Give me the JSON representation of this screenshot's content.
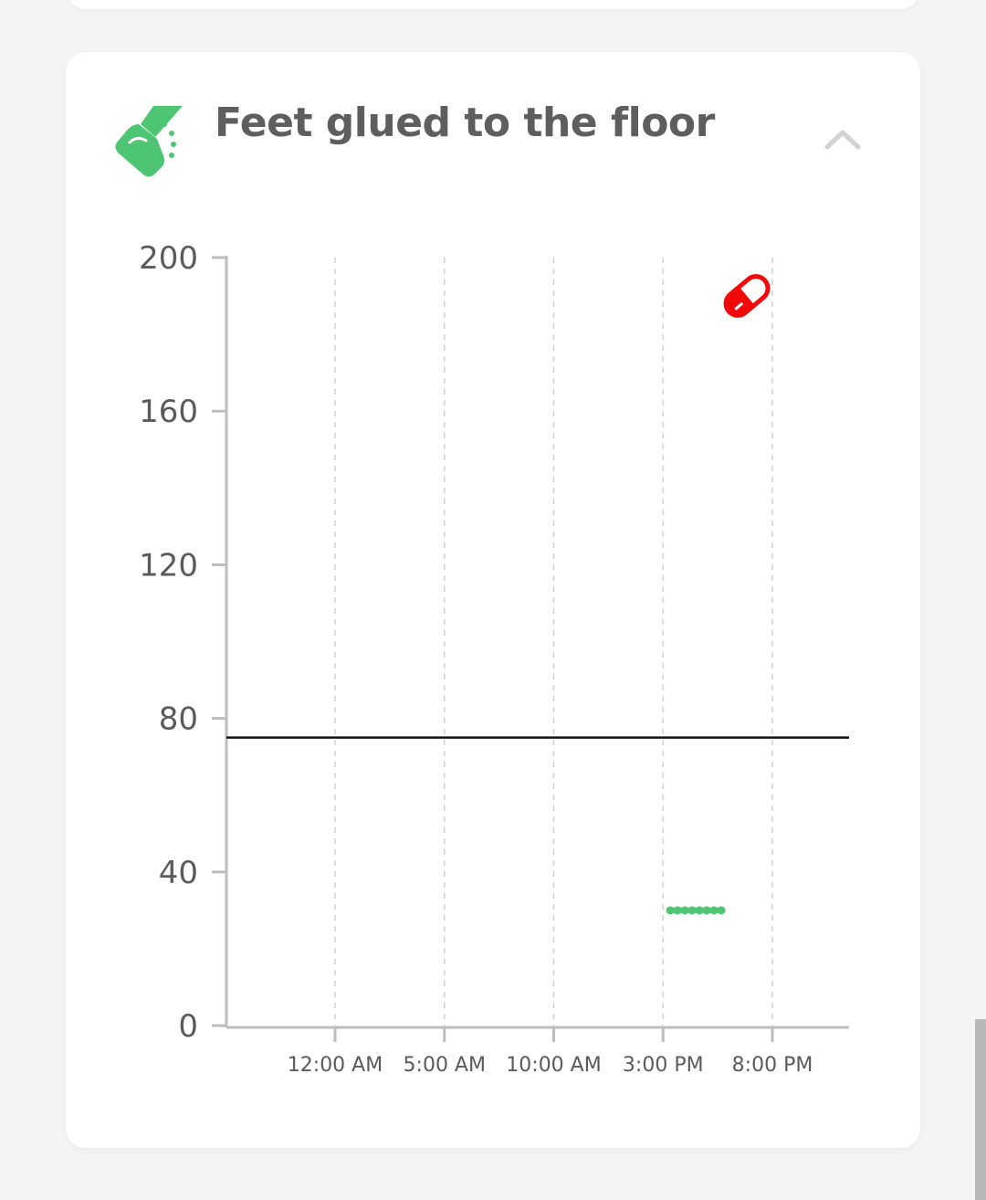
{
  "card": {
    "title": "Feet glued to the floor",
    "icon": "foot-glued-icon",
    "collapse_icon": "chevron-up-icon",
    "accent_color": "#4ec572"
  },
  "chart_data": {
    "type": "line",
    "x_ticks": [
      "12:00 AM",
      "5:00 AM",
      "10:00 AM",
      "3:00 PM",
      "8:00 PM"
    ],
    "y_ticks": [
      0,
      40,
      80,
      120,
      160,
      200
    ],
    "ylim": [
      0,
      200
    ],
    "grid": "vertical-dashed",
    "reference_line": {
      "y": 75,
      "color": "#111111"
    },
    "series": [
      {
        "color": "#4ec572",
        "points": [
          {
            "time": "3:20 PM",
            "value": 30
          },
          {
            "time": "3:40 PM",
            "value": 30
          },
          {
            "time": "4:00 PM",
            "value": 30
          },
          {
            "time": "4:20 PM",
            "value": 30
          },
          {
            "time": "4:40 PM",
            "value": 30
          },
          {
            "time": "5:00 PM",
            "value": 30
          },
          {
            "time": "5:20 PM",
            "value": 30
          },
          {
            "time": "5:40 PM",
            "value": 30
          }
        ]
      }
    ],
    "markers": [
      {
        "type": "medication",
        "icon": "pill-icon",
        "time": "6:50 PM",
        "value": 190,
        "color": "#f20a0a"
      }
    ]
  }
}
